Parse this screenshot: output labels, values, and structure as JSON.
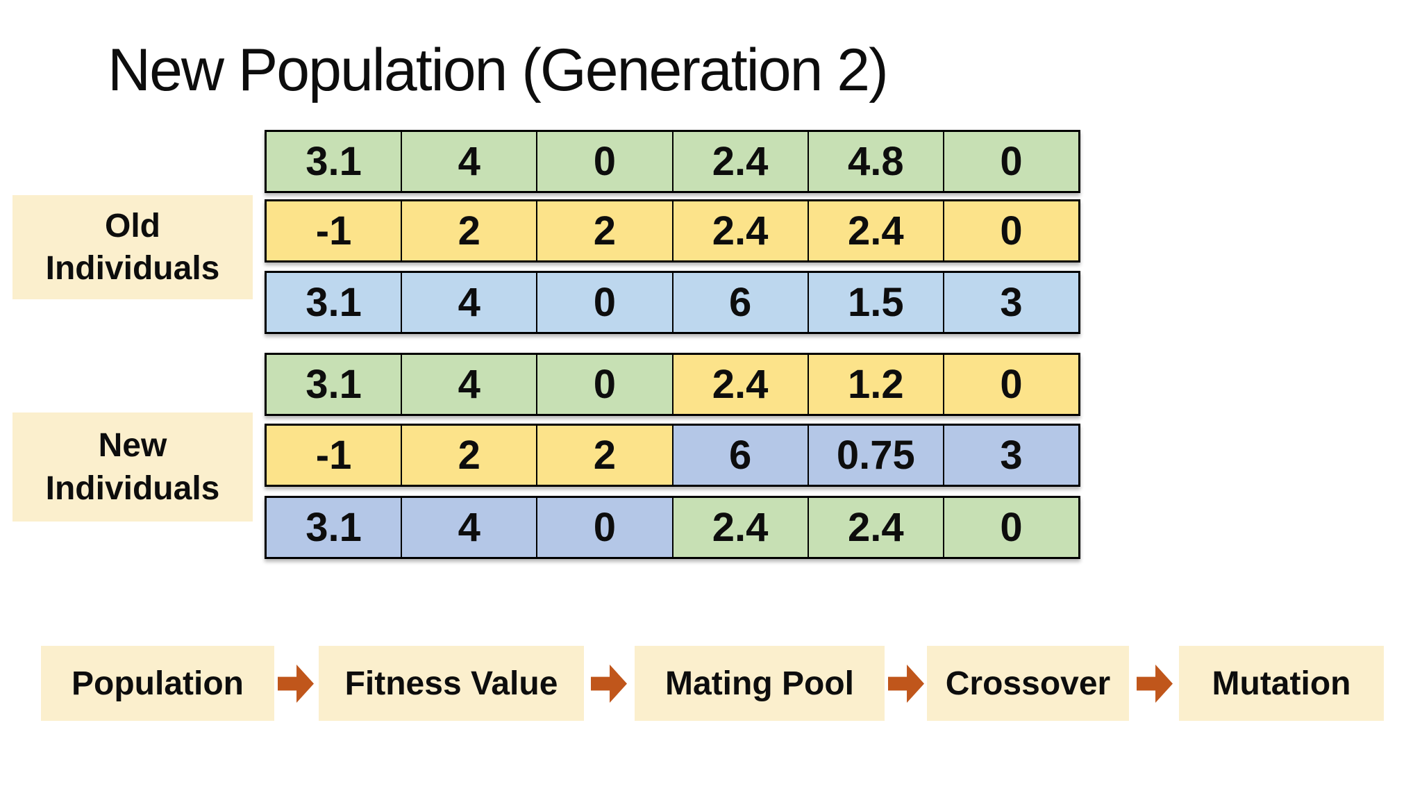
{
  "title": "New Population (Generation 2)",
  "colors": {
    "green": "#C7E0B4",
    "yellow": "#FCE38A",
    "blue_light": "#BDD7EE",
    "blue_gray": "#B4C7E7",
    "cream": "#FBEFCD",
    "arrow_orange": "#C0561B",
    "border": "#000000",
    "text": "#0D0D0D"
  },
  "groups": [
    {
      "label_lines": [
        "Old",
        "Individuals"
      ],
      "rows": [
        {
          "cells": [
            {
              "value": "3.1",
              "color": "green"
            },
            {
              "value": "4",
              "color": "green"
            },
            {
              "value": "0",
              "color": "green"
            },
            {
              "value": "2.4",
              "color": "green"
            },
            {
              "value": "4.8",
              "color": "green"
            },
            {
              "value": "0",
              "color": "green"
            }
          ]
        },
        {
          "cells": [
            {
              "value": "-1",
              "color": "yellow"
            },
            {
              "value": "2",
              "color": "yellow"
            },
            {
              "value": "2",
              "color": "yellow"
            },
            {
              "value": "2.4",
              "color": "yellow"
            },
            {
              "value": "2.4",
              "color": "yellow"
            },
            {
              "value": "0",
              "color": "yellow"
            }
          ]
        },
        {
          "cells": [
            {
              "value": "3.1",
              "color": "blue_light"
            },
            {
              "value": "4",
              "color": "blue_light"
            },
            {
              "value": "0",
              "color": "blue_light"
            },
            {
              "value": "6",
              "color": "blue_light"
            },
            {
              "value": "1.5",
              "color": "blue_light"
            },
            {
              "value": "3",
              "color": "blue_light"
            }
          ]
        }
      ]
    },
    {
      "label_lines": [
        "New",
        "Individuals"
      ],
      "rows": [
        {
          "cells": [
            {
              "value": "3.1",
              "color": "green"
            },
            {
              "value": "4",
              "color": "green"
            },
            {
              "value": "0",
              "color": "green"
            },
            {
              "value": "2.4",
              "color": "yellow"
            },
            {
              "value": "1.2",
              "color": "yellow"
            },
            {
              "value": "0",
              "color": "yellow"
            }
          ]
        },
        {
          "cells": [
            {
              "value": "-1",
              "color": "yellow"
            },
            {
              "value": "2",
              "color": "yellow"
            },
            {
              "value": "2",
              "color": "yellow"
            },
            {
              "value": "6",
              "color": "blue_gray"
            },
            {
              "value": "0.75",
              "color": "blue_gray"
            },
            {
              "value": "3",
              "color": "blue_gray"
            }
          ]
        },
        {
          "cells": [
            {
              "value": "3.1",
              "color": "blue_gray"
            },
            {
              "value": "4",
              "color": "blue_gray"
            },
            {
              "value": "0",
              "color": "blue_gray"
            },
            {
              "value": "2.4",
              "color": "green"
            },
            {
              "value": "2.4",
              "color": "green"
            },
            {
              "value": "0",
              "color": "green"
            }
          ]
        }
      ]
    }
  ],
  "flow": {
    "items": [
      {
        "label": "Population"
      },
      {
        "label": "Fitness Value"
      },
      {
        "label": "Mating Pool"
      },
      {
        "label": "Crossover"
      },
      {
        "label": "Mutation"
      }
    ],
    "arrow_icon": "block-right-arrow"
  }
}
